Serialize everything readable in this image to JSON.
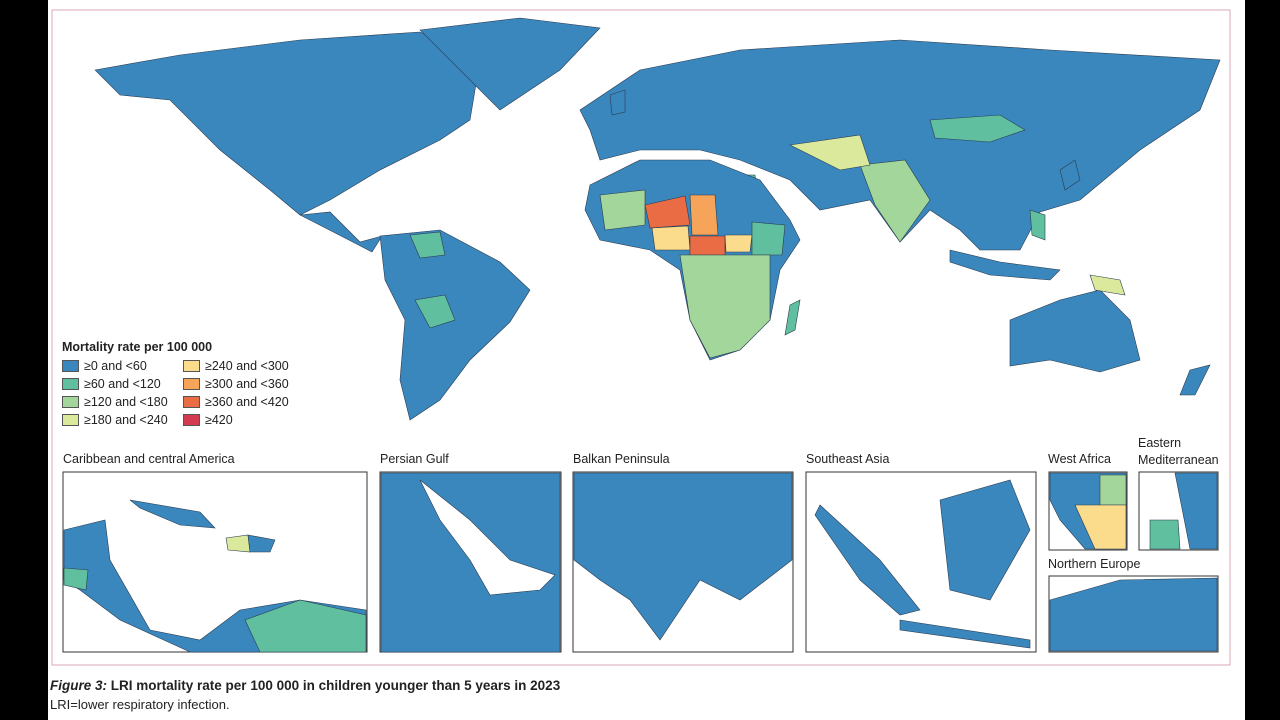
{
  "legend": {
    "title": "Mortality rate per 100 000",
    "items": [
      {
        "label": "≥0 and <60",
        "color": "#3a87be"
      },
      {
        "label": "≥60 and <120",
        "color": "#5fbf9e"
      },
      {
        "label": "≥120 and <180",
        "color": "#a2d69a"
      },
      {
        "label": "≥180 and <240",
        "color": "#dbe99c"
      },
      {
        "label": "≥240 and <300",
        "color": "#fbdb8c"
      },
      {
        "label": "≥300 and <360",
        "color": "#f6a45a"
      },
      {
        "label": "≥360 and <420",
        "color": "#ea6c45"
      },
      {
        "label": "≥420",
        "color": "#d13a50"
      }
    ]
  },
  "insets": [
    {
      "title": "Caribbean and central America"
    },
    {
      "title": "Persian Gulf"
    },
    {
      "title": "Balkan Peninsula"
    },
    {
      "title": "Southeast Asia"
    },
    {
      "title": "West Africa"
    },
    {
      "title": "Eastern Mediterranean"
    },
    {
      "title": "Northern Europe"
    }
  ],
  "caption": {
    "label": "Figure 3:",
    "text": "LRI mortality rate per 100 000 in children younger than 5 years in 2023"
  },
  "note": "LRI=lower respiratory infection."
}
